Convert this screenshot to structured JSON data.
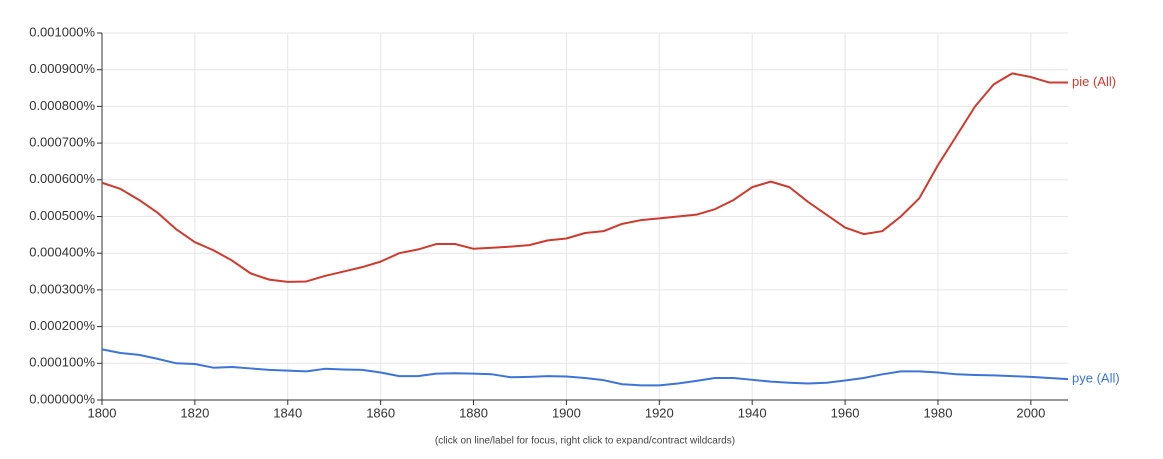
{
  "chart_data": {
    "type": "line",
    "note": "(click on line/label for focus, right click to expand/contract wildcards)",
    "x": [
      1800,
      1804,
      1808,
      1812,
      1816,
      1820,
      1824,
      1828,
      1832,
      1836,
      1840,
      1844,
      1848,
      1852,
      1856,
      1860,
      1864,
      1868,
      1872,
      1876,
      1880,
      1884,
      1888,
      1892,
      1896,
      1900,
      1904,
      1908,
      1912,
      1916,
      1920,
      1924,
      1928,
      1932,
      1936,
      1940,
      1944,
      1948,
      1952,
      1956,
      1960,
      1964,
      1968,
      1972,
      1976,
      1980,
      1984,
      1988,
      1992,
      1996,
      2000,
      2004,
      2008
    ],
    "series": [
      {
        "name": "pie (All)",
        "color": "#cc3b2f",
        "values": [
          0.000592,
          0.000575,
          0.000545,
          0.00051,
          0.000465,
          0.00043,
          0.000408,
          0.00038,
          0.000345,
          0.000328,
          0.000322,
          0.000323,
          0.000338,
          0.00035,
          0.000362,
          0.000377,
          0.0004,
          0.00041,
          0.000425,
          0.000425,
          0.000412,
          0.000415,
          0.000418,
          0.000422,
          0.000435,
          0.00044,
          0.000455,
          0.00046,
          0.00048,
          0.00049,
          0.000495,
          0.0005,
          0.000505,
          0.00052,
          0.000545,
          0.00058,
          0.000595,
          0.00058,
          0.00054,
          0.000505,
          0.00047,
          0.000452,
          0.00046,
          0.0005,
          0.00055,
          0.00064,
          0.00072,
          0.0008,
          0.00086,
          0.00089,
          0.00088,
          0.000865,
          0.000865
        ]
      },
      {
        "name": "pye (All)",
        "color": "#3e74d6",
        "values": [
          0.000138,
          0.000128,
          0.000123,
          0.000112,
          0.0001,
          9.8e-05,
          8.8e-05,
          9e-05,
          8.6e-05,
          8.2e-05,
          8e-05,
          7.8e-05,
          8.5e-05,
          8.3e-05,
          8.2e-05,
          7.5e-05,
          6.5e-05,
          6.5e-05,
          7.2e-05,
          7.3e-05,
          7.2e-05,
          7e-05,
          6.2e-05,
          6.3e-05,
          6.5e-05,
          6.4e-05,
          6e-05,
          5.4e-05,
          4.3e-05,
          4e-05,
          4e-05,
          4.5e-05,
          5.2e-05,
          6e-05,
          6e-05,
          5.5e-05,
          5e-05,
          4.7e-05,
          4.5e-05,
          4.7e-05,
          5.3e-05,
          6e-05,
          7e-05,
          7.8e-05,
          7.8e-05,
          7.5e-05,
          7e-05,
          6.8e-05,
          6.7e-05,
          6.5e-05,
          6.3e-05,
          6e-05,
          5.7e-05
        ]
      }
    ],
    "xlim": [
      1800,
      2008
    ],
    "xticks": [
      1800,
      1820,
      1840,
      1860,
      1880,
      1900,
      1920,
      1940,
      1960,
      1980,
      2000
    ],
    "ylim": [
      0,
      0.001
    ],
    "yticks": [
      {
        "value": 0,
        "label": "0.000000%"
      },
      {
        "value": 0.0001,
        "label": "0.000100%"
      },
      {
        "value": 0.0002,
        "label": "0.000200%"
      },
      {
        "value": 0.0003,
        "label": "0.000300%"
      },
      {
        "value": 0.0004,
        "label": "0.000400%"
      },
      {
        "value": 0.0005,
        "label": "0.000500%"
      },
      {
        "value": 0.0006,
        "label": "0.000600%"
      },
      {
        "value": 0.0007,
        "label": "0.000700%"
      },
      {
        "value": 0.0008,
        "label": "0.000800%"
      },
      {
        "value": 0.0009,
        "label": "0.000900%"
      },
      {
        "value": 0.001,
        "label": "0.001000%"
      }
    ],
    "grid": true
  }
}
